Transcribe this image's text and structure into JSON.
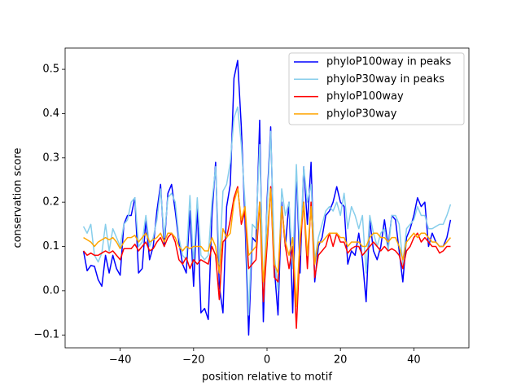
{
  "chart_data": {
    "type": "line",
    "xlabel": "position relative to motif",
    "ylabel": "conservation score",
    "x": [
      -50,
      -49,
      -48,
      -47,
      -46,
      -45,
      -44,
      -43,
      -42,
      -41,
      -40,
      -39,
      -38,
      -37,
      -36,
      -35,
      -34,
      -33,
      -32,
      -31,
      -30,
      -29,
      -28,
      -27,
      -26,
      -25,
      -24,
      -23,
      -22,
      -21,
      -20,
      -19,
      -18,
      -17,
      -16,
      -15,
      -14,
      -13,
      -12,
      -11,
      -10,
      -9,
      -8,
      -7,
      -6,
      -5,
      -4,
      -3,
      -2,
      -1,
      0,
      1,
      2,
      3,
      4,
      5,
      6,
      7,
      8,
      9,
      10,
      11,
      12,
      13,
      14,
      15,
      16,
      17,
      18,
      19,
      20,
      21,
      22,
      23,
      24,
      25,
      26,
      27,
      28,
      29,
      30,
      31,
      32,
      33,
      34,
      35,
      36,
      37,
      38,
      39,
      40,
      41,
      42,
      43,
      44,
      45,
      46,
      47,
      48,
      49,
      50
    ],
    "series": [
      {
        "name": "phyloP100way in peaks",
        "color": "#0000ff",
        "values": [
          0.09,
          0.045,
          0.057,
          0.055,
          0.025,
          0.01,
          0.08,
          0.04,
          0.08,
          0.05,
          0.035,
          0.15,
          0.17,
          0.17,
          0.21,
          0.04,
          0.05,
          0.16,
          0.07,
          0.1,
          0.18,
          0.24,
          0.1,
          0.22,
          0.24,
          0.18,
          0.11,
          0.06,
          0.04,
          0.18,
          0.01,
          0.19,
          -0.05,
          -0.04,
          -0.065,
          0.17,
          0.29,
          0.01,
          -0.05,
          0.19,
          0.24,
          0.48,
          0.52,
          0.37,
          0.16,
          -0.1,
          0.12,
          0.11,
          0.385,
          -0.07,
          0.2,
          0.37,
          0.05,
          -0.055,
          0.2,
          0.1,
          0.2,
          -0.05,
          0.27,
          0.04,
          0.28,
          0.15,
          0.29,
          0.02,
          0.1,
          0.12,
          0.17,
          0.18,
          0.2,
          0.235,
          0.2,
          0.19,
          0.06,
          0.09,
          0.08,
          0.13,
          0.07,
          -0.025,
          0.16,
          0.09,
          0.07,
          0.1,
          0.16,
          0.1,
          0.17,
          0.16,
          0.09,
          0.02,
          0.12,
          0.14,
          0.17,
          0.21,
          0.19,
          0.2,
          0.1,
          0.13,
          0.11,
          0.1,
          0.1,
          0.12,
          0.16
        ]
      },
      {
        "name": "phyloP30way in peaks",
        "color": "#87ceeb",
        "values": [
          0.145,
          0.13,
          0.15,
          0.08,
          0.065,
          0.085,
          0.15,
          0.09,
          0.14,
          0.12,
          0.1,
          0.15,
          0.16,
          0.2,
          0.21,
          0.1,
          0.11,
          0.17,
          0.1,
          0.12,
          0.16,
          0.23,
          0.12,
          0.21,
          0.22,
          0.2,
          0.12,
          0.08,
          0.07,
          0.215,
          0.06,
          0.21,
          0.08,
          0.07,
          0.08,
          0.2,
          0.28,
          0.06,
          0.225,
          0.24,
          0.29,
          0.39,
          0.415,
          0.33,
          0.2,
          -0.055,
          0.15,
          0.14,
          0.33,
          0.0,
          0.18,
          0.36,
          0.08,
          0.0,
          0.23,
          0.17,
          0.2,
          0.05,
          0.285,
          0.08,
          0.28,
          0.2,
          0.24,
          0.07,
          0.12,
          0.15,
          0.18,
          0.19,
          0.18,
          0.2,
          0.17,
          0.22,
          0.14,
          0.19,
          0.17,
          0.14,
          0.17,
          0.04,
          0.17,
          0.13,
          0.1,
          0.13,
          0.14,
          0.09,
          0.17,
          0.17,
          0.15,
          0.06,
          0.14,
          0.15,
          0.16,
          0.19,
          0.17,
          0.17,
          0.14,
          0.14,
          0.145,
          0.15,
          0.15,
          0.17,
          0.195
        ]
      },
      {
        "name": "phyloP100way",
        "color": "#ff0000",
        "values": [
          0.09,
          0.08,
          0.085,
          0.08,
          0.08,
          0.085,
          0.09,
          0.085,
          0.09,
          0.08,
          0.07,
          0.095,
          0.095,
          0.095,
          0.105,
          0.09,
          0.1,
          0.11,
          0.09,
          0.095,
          0.11,
          0.12,
          0.1,
          0.12,
          0.13,
          0.11,
          0.07,
          0.06,
          0.075,
          0.05,
          0.07,
          0.06,
          0.07,
          0.065,
          0.06,
          0.1,
          0.08,
          -0.02,
          0.11,
          0.12,
          0.16,
          0.21,
          0.235,
          0.15,
          0.18,
          0.05,
          0.06,
          0.07,
          0.2,
          -0.025,
          0.1,
          0.235,
          0.03,
          0.02,
          0.19,
          0.1,
          0.05,
          0.1,
          -0.085,
          0.1,
          0.2,
          0.05,
          0.2,
          0.03,
          0.08,
          0.09,
          0.1,
          0.13,
          0.1,
          0.13,
          0.11,
          0.11,
          0.085,
          0.095,
          0.1,
          0.1,
          0.08,
          0.09,
          0.1,
          0.11,
          0.1,
          0.09,
          0.1,
          0.09,
          0.095,
          0.09,
          0.08,
          0.05,
          0.09,
          0.1,
          0.12,
          0.13,
          0.11,
          0.12,
          0.11,
          0.1,
          0.1,
          0.085,
          0.09,
          0.1,
          0.1
        ]
      },
      {
        "name": "phyloP30way",
        "color": "#ffa500",
        "values": [
          0.12,
          0.115,
          0.11,
          0.1,
          0.11,
          0.115,
          0.12,
          0.115,
          0.12,
          0.11,
          0.095,
          0.11,
          0.12,
          0.12,
          0.125,
          0.11,
          0.12,
          0.13,
          0.11,
          0.115,
          0.12,
          0.13,
          0.11,
          0.13,
          0.13,
          0.12,
          0.1,
          0.09,
          0.1,
          0.095,
          0.1,
          0.1,
          0.1,
          0.09,
          0.09,
          0.12,
          0.1,
          0.04,
          0.14,
          0.12,
          0.13,
          0.2,
          0.23,
          0.16,
          0.19,
          0.08,
          0.09,
          0.1,
          0.2,
          0.02,
          0.12,
          0.23,
          0.06,
          0.04,
          0.19,
          0.11,
          0.08,
          0.12,
          -0.035,
          0.12,
          0.2,
          0.08,
          0.19,
          0.06,
          0.11,
          0.11,
          0.12,
          0.13,
          0.13,
          0.13,
          0.12,
          0.12,
          0.1,
          0.11,
          0.11,
          0.11,
          0.1,
          0.1,
          0.12,
          0.13,
          0.13,
          0.12,
          0.12,
          0.11,
          0.12,
          0.12,
          0.1,
          0.07,
          0.11,
          0.12,
          0.13,
          0.12,
          0.13,
          0.13,
          0.12,
          0.11,
          0.11,
          0.1,
          0.1,
          0.11,
          0.12
        ]
      }
    ],
    "xlim": [
      -55,
      55
    ],
    "xticks": [
      {
        "value": -40,
        "label": "−40"
      },
      {
        "value": -20,
        "label": "−20"
      },
      {
        "value": 0,
        "label": "0"
      },
      20,
      40
    ],
    "ylim": [
      -0.129,
      0.548
    ],
    "yticks": [
      {
        "value": -0.1,
        "label": "−0.1"
      },
      {
        "value": 0,
        "label": "0.0"
      },
      0.1,
      0.2,
      0.3,
      0.4,
      0.5
    ],
    "legend": "upper right"
  }
}
